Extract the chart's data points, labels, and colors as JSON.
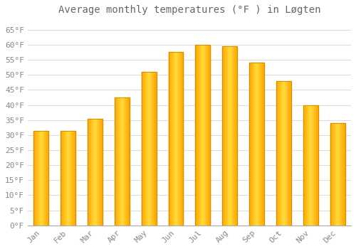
{
  "title": "Average monthly temperatures (°F ) in Løgten",
  "months": [
    "Jan",
    "Feb",
    "Mar",
    "Apr",
    "May",
    "Jun",
    "Jul",
    "Aug",
    "Sep",
    "Oct",
    "Nov",
    "Dec"
  ],
  "values": [
    31.5,
    31.5,
    35.5,
    42.5,
    51.0,
    57.5,
    60.0,
    59.5,
    54.0,
    48.0,
    40.0,
    34.0
  ],
  "bar_color_center": "#FFD060",
  "bar_color_edge": "#FFA500",
  "background_color": "#FFFFFF",
  "grid_color": "#DDDDDD",
  "text_color": "#888888",
  "ylim": [
    0,
    68
  ],
  "yticks": [
    0,
    5,
    10,
    15,
    20,
    25,
    30,
    35,
    40,
    45,
    50,
    55,
    60,
    65
  ],
  "title_fontsize": 10,
  "tick_fontsize": 8,
  "bar_width": 0.55
}
